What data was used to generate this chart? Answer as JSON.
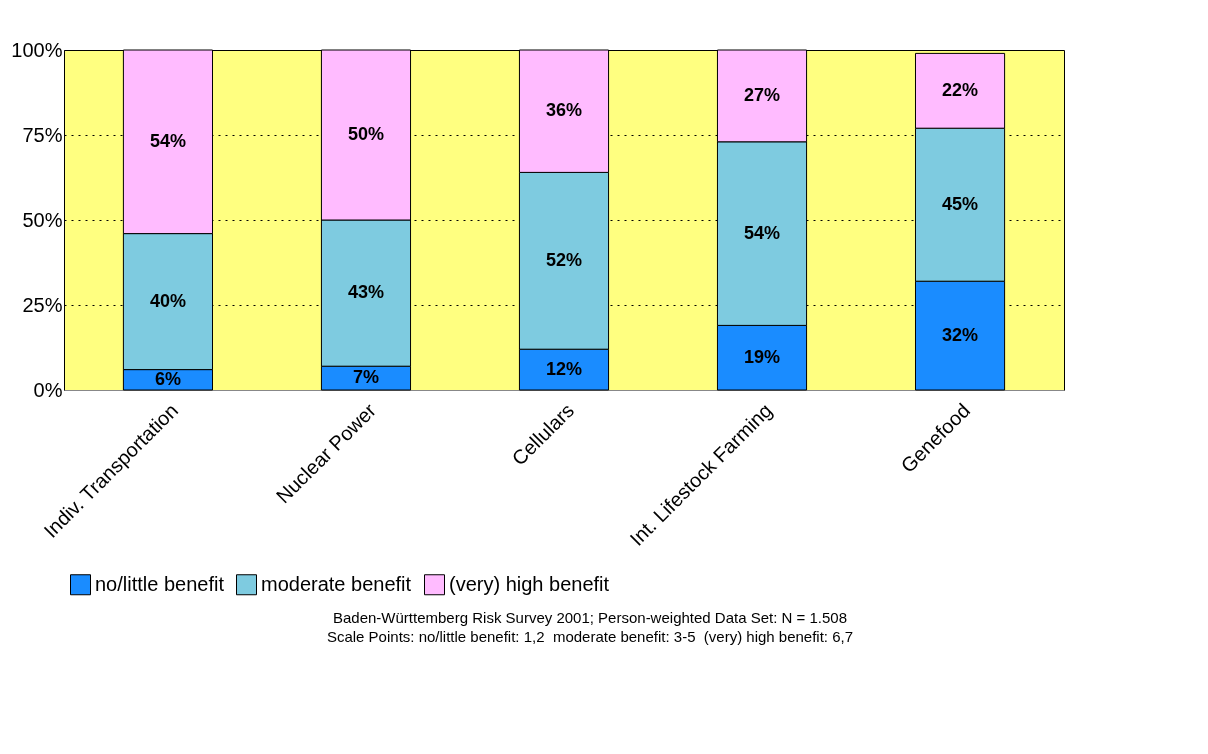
{
  "chart_data": {
    "type": "bar",
    "stacked": true,
    "categories": [
      "Indiv. Transportation",
      "Nuclear Power",
      "Cellulars",
      "Int. Lifestock Farming",
      "Genefood"
    ],
    "series": [
      {
        "name": "no/little benefit",
        "color": "#1a8cff",
        "values": [
          6,
          7,
          12,
          19,
          32
        ],
        "value_labels": [
          "6%",
          "7%",
          "12%",
          "19%",
          "32%"
        ]
      },
      {
        "name": "moderate benefit",
        "color": "#7ecbe0",
        "values": [
          40,
          43,
          52,
          54,
          45
        ],
        "value_labels": [
          "40%",
          "43%",
          "52%",
          "54%",
          "45%"
        ]
      },
      {
        "name": "(very) high benefit",
        "color": "#ffbbff",
        "values": [
          54,
          50,
          36,
          27,
          22
        ],
        "value_labels": [
          "54%",
          "50%",
          "36%",
          "27%",
          "22%"
        ]
      }
    ],
    "ylim": [
      0,
      100
    ],
    "yticks": [
      {
        "value": 0,
        "label": "0%"
      },
      {
        "value": 25,
        "label": "25%"
      },
      {
        "value": 50,
        "label": "50%"
      },
      {
        "value": 75,
        "label": "75%"
      },
      {
        "value": 100,
        "label": "100%"
      }
    ],
    "grid": "y",
    "legend": "bottom",
    "annotations": [
      "Baden-Württemberg Risk Survey 2001; Person-weighted Data Set: N = 1.508",
      "Scale Points: no/little benefit: 1,2  moderate benefit: 3-5  (very) high benefit: 6,7"
    ]
  }
}
